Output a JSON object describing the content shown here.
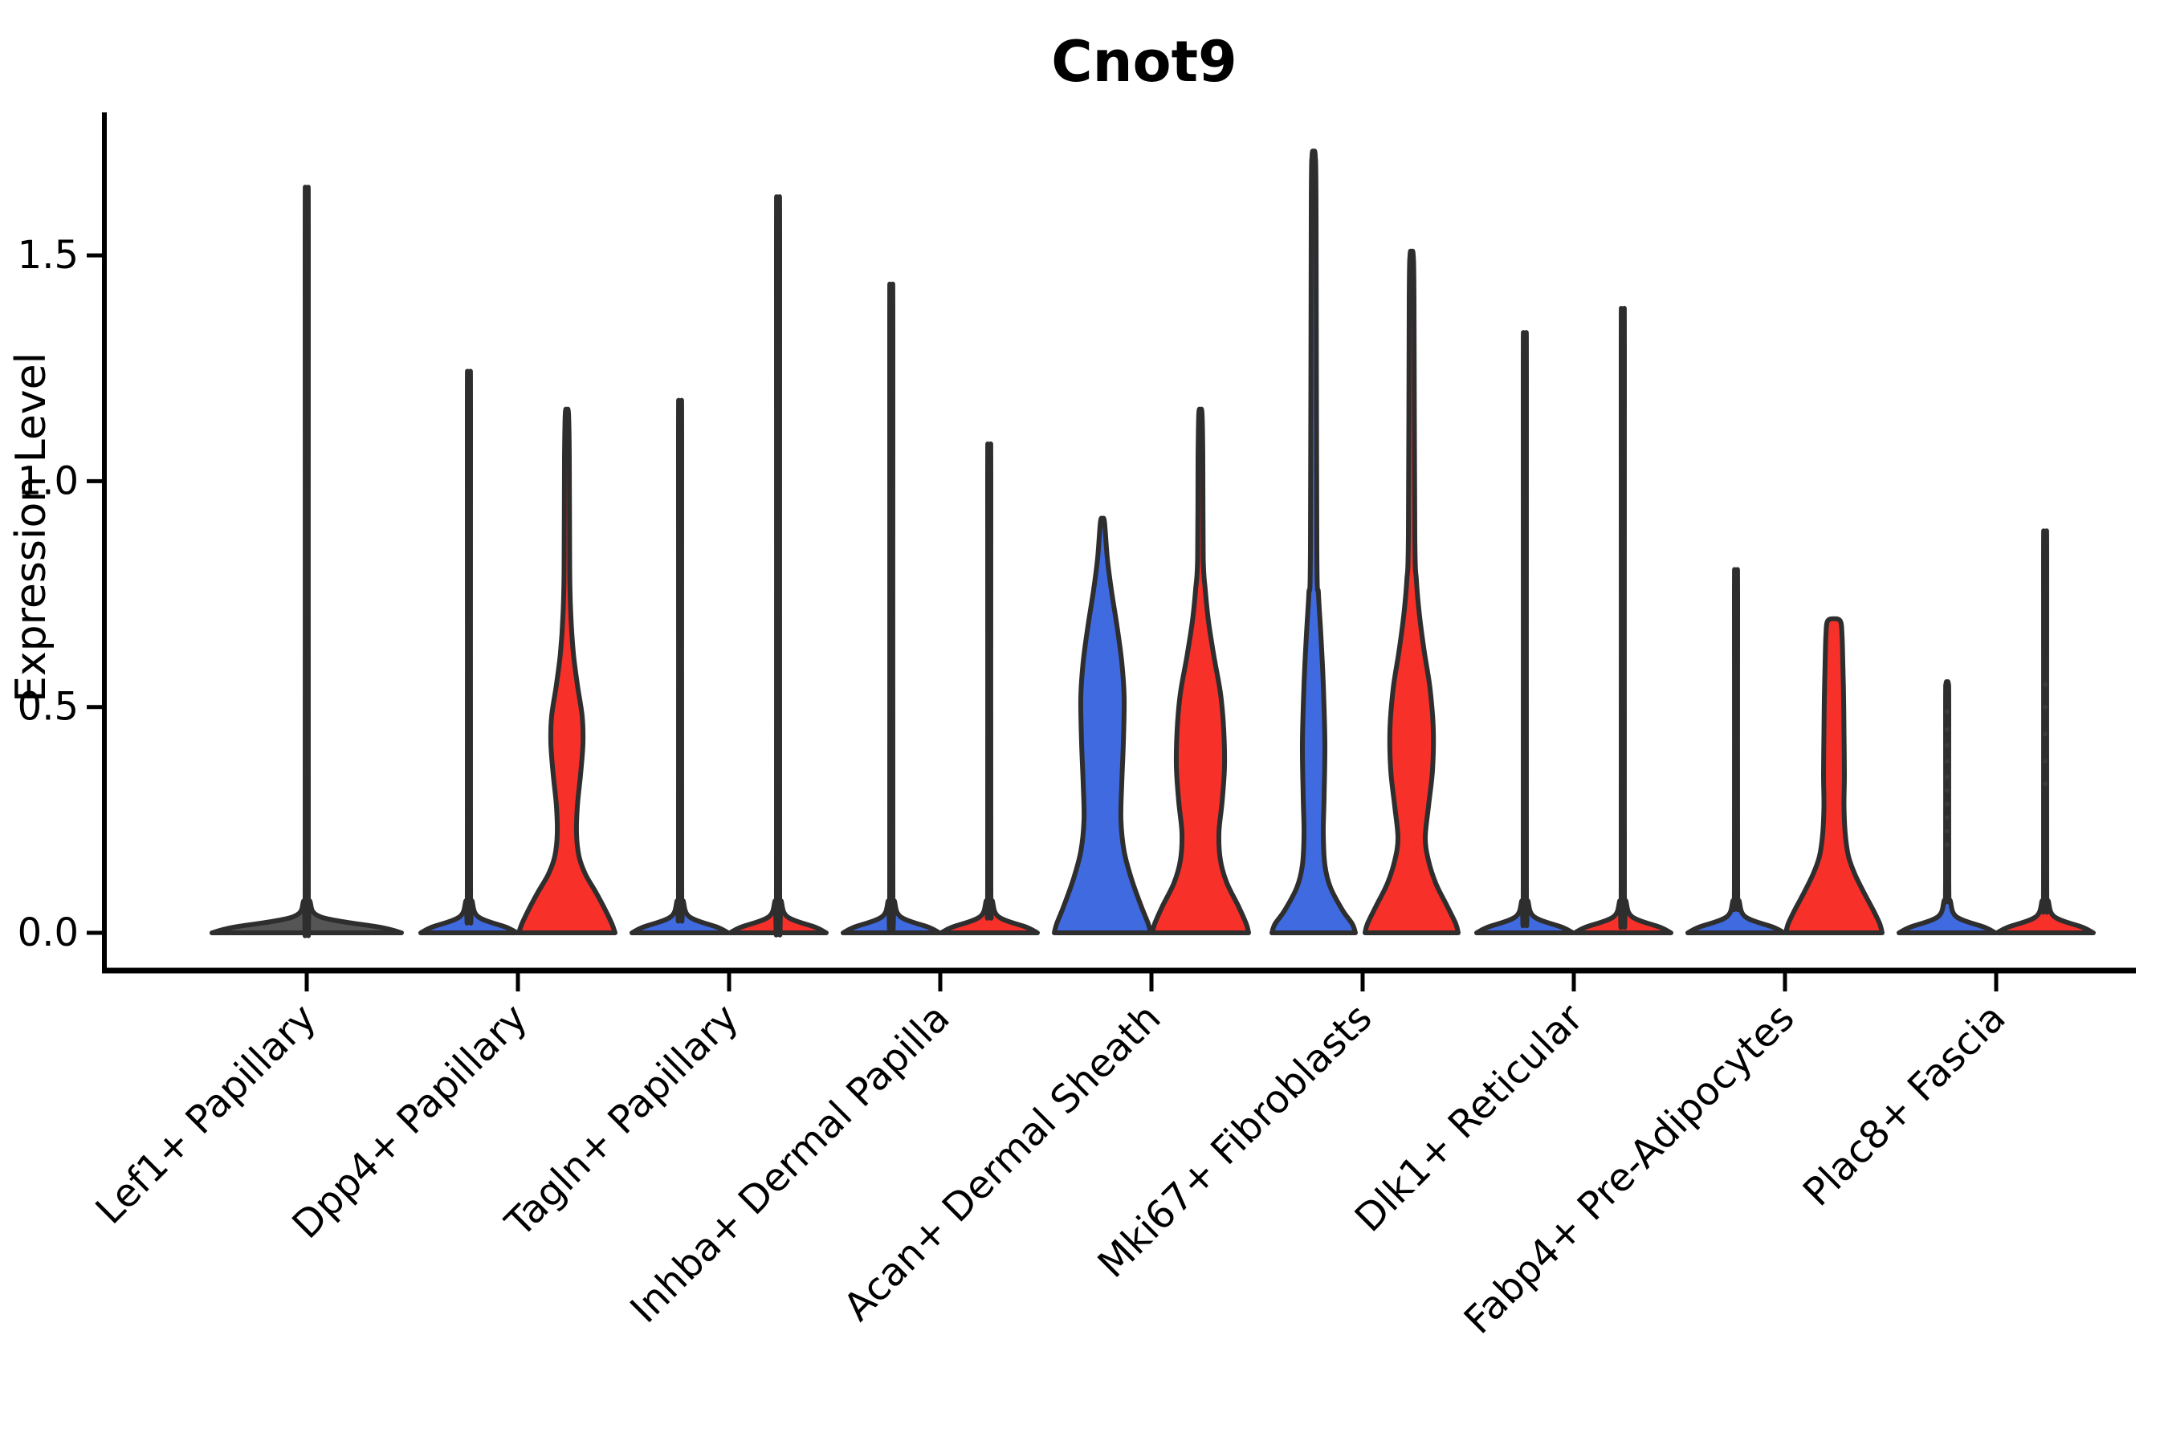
{
  "chart_data": {
    "type": "violin",
    "title": "Cnot9",
    "xlabel": "",
    "ylabel": "Expression Level",
    "ylim": [
      -0.085,
      1.82
    ],
    "yticks": [
      0.0,
      0.5,
      1.0,
      1.5
    ],
    "ytick_labels": [
      "0.0",
      "0.5",
      "1.0",
      "1.5"
    ],
    "grid": false,
    "legend": "none",
    "background": "#ffffff",
    "colors": {
      "left_series": "#3F6AE0",
      "right_series": "#F73029",
      "single_series": "#555555",
      "edge": "#2E2E2E",
      "axis": "#000000",
      "dot": "#3A3A3A"
    },
    "categories": [
      "Lef1+ Papillary",
      "Dpp4+ Papillary",
      "Tagln+ Papillary",
      "Inhba+ Dermal Papilla",
      "Acan+ Dermal Sheath",
      "Mki67+ Fibroblasts",
      "Dlk1+ Reticular",
      "Fabp4+ Pre-Adipocytes",
      "Plac8+ Fascia"
    ],
    "violins": [
      {
        "category": "Lef1+ Papillary",
        "position": "single",
        "color_key": "single_series",
        "style": "spike",
        "max_expression": 1.58,
        "base_halfwidth": 118
      },
      {
        "category": "Dpp4+ Papillary",
        "position": "left",
        "color_key": "left_series",
        "style": "spike",
        "max_expression": 1.2,
        "base_halfwidth": 60
      },
      {
        "category": "Dpp4+ Papillary",
        "position": "right",
        "color_key": "right_series",
        "style": "profile",
        "max_expression": 1.15,
        "profile": [
          [
            0,
            60
          ],
          [
            0.02,
            56
          ],
          [
            0.05,
            48
          ],
          [
            0.09,
            36
          ],
          [
            0.13,
            23
          ],
          [
            0.17,
            15
          ],
          [
            0.22,
            12
          ],
          [
            0.28,
            13
          ],
          [
            0.35,
            17
          ],
          [
            0.42,
            20
          ],
          [
            0.48,
            19
          ],
          [
            0.55,
            13
          ],
          [
            0.62,
            8
          ],
          [
            0.7,
            5
          ],
          [
            0.8,
            3.5
          ],
          [
            1.05,
            3
          ],
          [
            1.15,
            2
          ]
        ]
      },
      {
        "category": "Tagln+ Papillary",
        "position": "left",
        "color_key": "left_series",
        "style": "spike",
        "max_expression": 1.14,
        "base_halfwidth": 60
      },
      {
        "category": "Tagln+ Papillary",
        "position": "right",
        "color_key": "right_series",
        "style": "spike",
        "max_expression": 1.56,
        "base_halfwidth": 60
      },
      {
        "category": "Inhba+ Dermal Papilla",
        "position": "left",
        "color_key": "left_series",
        "style": "spike",
        "max_expression": 1.38,
        "base_halfwidth": 60
      },
      {
        "category": "Inhba+ Dermal Papilla",
        "position": "right",
        "color_key": "right_series",
        "style": "spike",
        "max_expression": 1.05,
        "base_halfwidth": 60
      },
      {
        "category": "Acan+ Dermal Sheath",
        "position": "left",
        "color_key": "left_series",
        "style": "profile",
        "max_expression": 0.91,
        "profile": [
          [
            0,
            60
          ],
          [
            0.02,
            57
          ],
          [
            0.06,
            48
          ],
          [
            0.12,
            36
          ],
          [
            0.18,
            27
          ],
          [
            0.25,
            23
          ],
          [
            0.33,
            24
          ],
          [
            0.42,
            26
          ],
          [
            0.52,
            27
          ],
          [
            0.6,
            24
          ],
          [
            0.68,
            18
          ],
          [
            0.76,
            11
          ],
          [
            0.83,
            6
          ],
          [
            0.91,
            2.5
          ]
        ]
      },
      {
        "category": "Acan+ Dermal Sheath",
        "position": "right",
        "color_key": "right_series",
        "style": "profile",
        "max_expression": 1.15,
        "profile": [
          [
            0,
            60
          ],
          [
            0.02,
            57
          ],
          [
            0.06,
            47
          ],
          [
            0.11,
            33
          ],
          [
            0.16,
            25
          ],
          [
            0.22,
            23
          ],
          [
            0.29,
            27
          ],
          [
            0.37,
            30
          ],
          [
            0.45,
            29
          ],
          [
            0.53,
            25
          ],
          [
            0.61,
            17
          ],
          [
            0.69,
            10
          ],
          [
            0.76,
            6
          ],
          [
            0.83,
            3.5
          ],
          [
            1.05,
            3
          ],
          [
            1.15,
            2
          ]
        ]
      },
      {
        "category": "Mki67+ Fibroblasts",
        "position": "left",
        "color_key": "left_series",
        "style": "profile",
        "max_expression": 1.72,
        "profile": [
          [
            0,
            52
          ],
          [
            0.02,
            48
          ],
          [
            0.05,
            36
          ],
          [
            0.1,
            21
          ],
          [
            0.15,
            14
          ],
          [
            0.22,
            12
          ],
          [
            0.3,
            13
          ],
          [
            0.42,
            14
          ],
          [
            0.55,
            12
          ],
          [
            0.66,
            9
          ],
          [
            0.75,
            6
          ],
          [
            0.85,
            4
          ],
          [
            1.6,
            3
          ],
          [
            1.72,
            2
          ]
        ]
      },
      {
        "category": "Mki67+ Fibroblasts",
        "position": "right",
        "color_key": "right_series",
        "style": "profile",
        "max_expression": 1.5,
        "profile": [
          [
            0,
            58
          ],
          [
            0.02,
            55
          ],
          [
            0.06,
            44
          ],
          [
            0.11,
            30
          ],
          [
            0.16,
            21
          ],
          [
            0.21,
            17
          ],
          [
            0.28,
            21
          ],
          [
            0.36,
            26
          ],
          [
            0.45,
            27
          ],
          [
            0.54,
            23
          ],
          [
            0.62,
            16
          ],
          [
            0.7,
            10
          ],
          [
            0.78,
            6
          ],
          [
            0.88,
            4
          ],
          [
            1.4,
            3
          ],
          [
            1.5,
            2
          ]
        ]
      },
      {
        "category": "Dlk1+ Reticular",
        "position": "left",
        "color_key": "left_series",
        "style": "spike",
        "max_expression": 1.28,
        "base_halfwidth": 60
      },
      {
        "category": "Dlk1+ Reticular",
        "position": "right",
        "color_key": "right_series",
        "style": "spike",
        "max_expression": 1.33,
        "base_halfwidth": 60
      },
      {
        "category": "Fabp4+ Pre-Adipocytes",
        "position": "left",
        "color_key": "left_series",
        "style": "spike",
        "max_expression": 0.79,
        "base_halfwidth": 60
      },
      {
        "category": "Fabp4+ Pre-Adipocytes",
        "position": "right",
        "color_key": "right_series",
        "style": "profile",
        "max_expression": 0.69,
        "profile": [
          [
            0,
            60
          ],
          [
            0.02,
            57
          ],
          [
            0.05,
            49
          ],
          [
            0.09,
            37
          ],
          [
            0.13,
            26
          ],
          [
            0.17,
            18
          ],
          [
            0.22,
            14
          ],
          [
            0.28,
            12.5
          ],
          [
            0.35,
            13
          ],
          [
            0.44,
            12.5
          ],
          [
            0.52,
            12
          ],
          [
            0.6,
            11
          ],
          [
            0.66,
            10
          ],
          [
            0.69,
            8
          ]
        ]
      },
      {
        "category": "Plac8+ Fascia",
        "position": "left",
        "color_key": "left_series",
        "style": "spike",
        "max_expression": 0.55,
        "base_halfwidth": 60,
        "dots": [
          0.195,
          0.225,
          0.255,
          0.285,
          0.315,
          0.345,
          0.38,
          0.415,
          0.45,
          0.49
        ]
      },
      {
        "category": "Plac8+ Fascia",
        "position": "right",
        "color_key": "right_series",
        "style": "spike",
        "max_expression": 0.87,
        "base_halfwidth": 60,
        "dots": [
          0.33,
          0.38,
          0.44,
          0.5,
          0.55
        ]
      }
    ]
  }
}
